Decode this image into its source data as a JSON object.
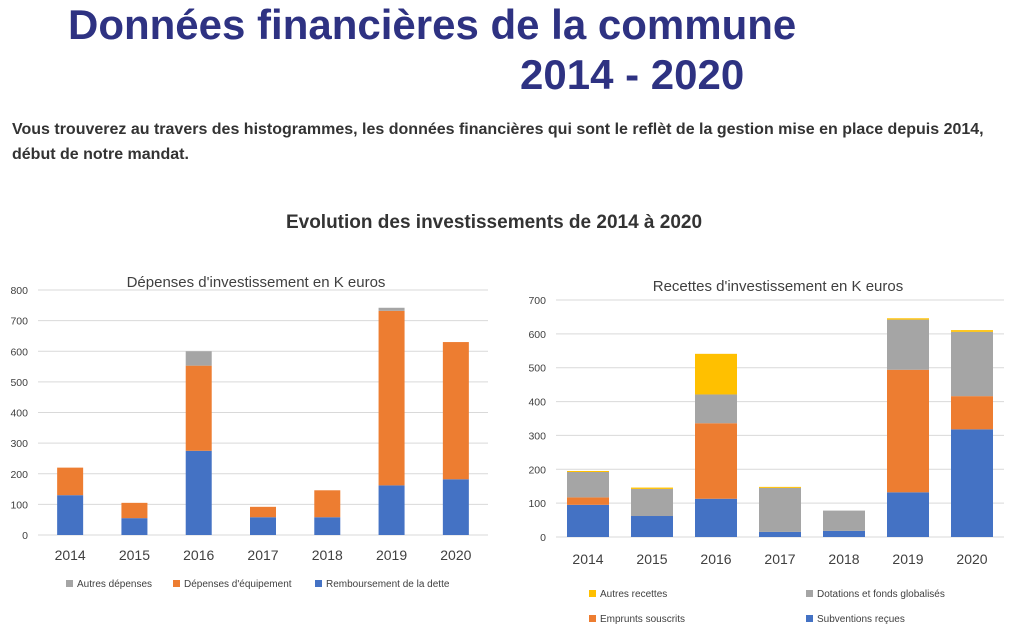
{
  "header": {
    "title_line1": "Données financières de la commune",
    "title_line2": "2014 - 2020"
  },
  "intro": "Vous trouverez au travers des histogrammes, les données financières qui sont le reflèt de la gestion mise en place depuis 2014,  début de notre mandat.",
  "section_title": "Evolution des investissements de 2014 à 2020",
  "chart_data": [
    {
      "type": "bar",
      "stacked": true,
      "title": "Dépenses d'investissement en K euros",
      "categories": [
        "2014",
        "2015",
        "2016",
        "2017",
        "2018",
        "2019",
        "2020"
      ],
      "ylim": [
        0,
        800
      ],
      "yticks": [
        "0",
        "100",
        "200",
        "300",
        "400",
        "500",
        "600",
        "700",
        "800"
      ],
      "grid": true,
      "legend_position": "bottom",
      "series": [
        {
          "name": "Remboursement de la dette",
          "color": "#4472c4",
          "values": [
            130,
            55,
            275,
            58,
            58,
            162,
            182
          ]
        },
        {
          "name": "Dépenses d'équipement",
          "color": "#ed7d31",
          "values": [
            90,
            50,
            278,
            34,
            88,
            570,
            448
          ]
        },
        {
          "name": "Autres dépenses",
          "color": "#a5a5a5",
          "values": [
            0,
            0,
            47,
            0,
            0,
            10,
            0
          ]
        }
      ],
      "legend_order": [
        "Autres dépenses",
        "Dépenses d'équipement",
        "Remboursement de la dette"
      ]
    },
    {
      "type": "bar",
      "stacked": true,
      "title": "Recettes d'investissement en K euros",
      "categories": [
        "2014",
        "2015",
        "2016",
        "2017",
        "2018",
        "2019",
        "2020"
      ],
      "ylim": [
        0,
        700
      ],
      "yticks": [
        "0",
        "100",
        "200",
        "300",
        "400",
        "500",
        "600",
        "700"
      ],
      "grid": true,
      "legend_position": "bottom",
      "series": [
        {
          "name": "Subventions reçues",
          "color": "#4472c4",
          "values": [
            95,
            62,
            113,
            15,
            18,
            132,
            318
          ]
        },
        {
          "name": "Emprunts souscrits",
          "color": "#ed7d31",
          "values": [
            22,
            0,
            223,
            0,
            0,
            362,
            98
          ]
        },
        {
          "name": "Dotations et fonds globalisés",
          "color": "#a5a5a5",
          "values": [
            75,
            80,
            85,
            130,
            60,
            148,
            190
          ]
        },
        {
          "name": "Autres recettes",
          "color": "#ffc000",
          "values": [
            3,
            4,
            120,
            3,
            0,
            4,
            5
          ]
        }
      ],
      "legend_order": [
        "Autres recettes",
        "Dotations et fonds globalisés",
        "Emprunts souscrits",
        "Subventions reçues"
      ]
    }
  ]
}
